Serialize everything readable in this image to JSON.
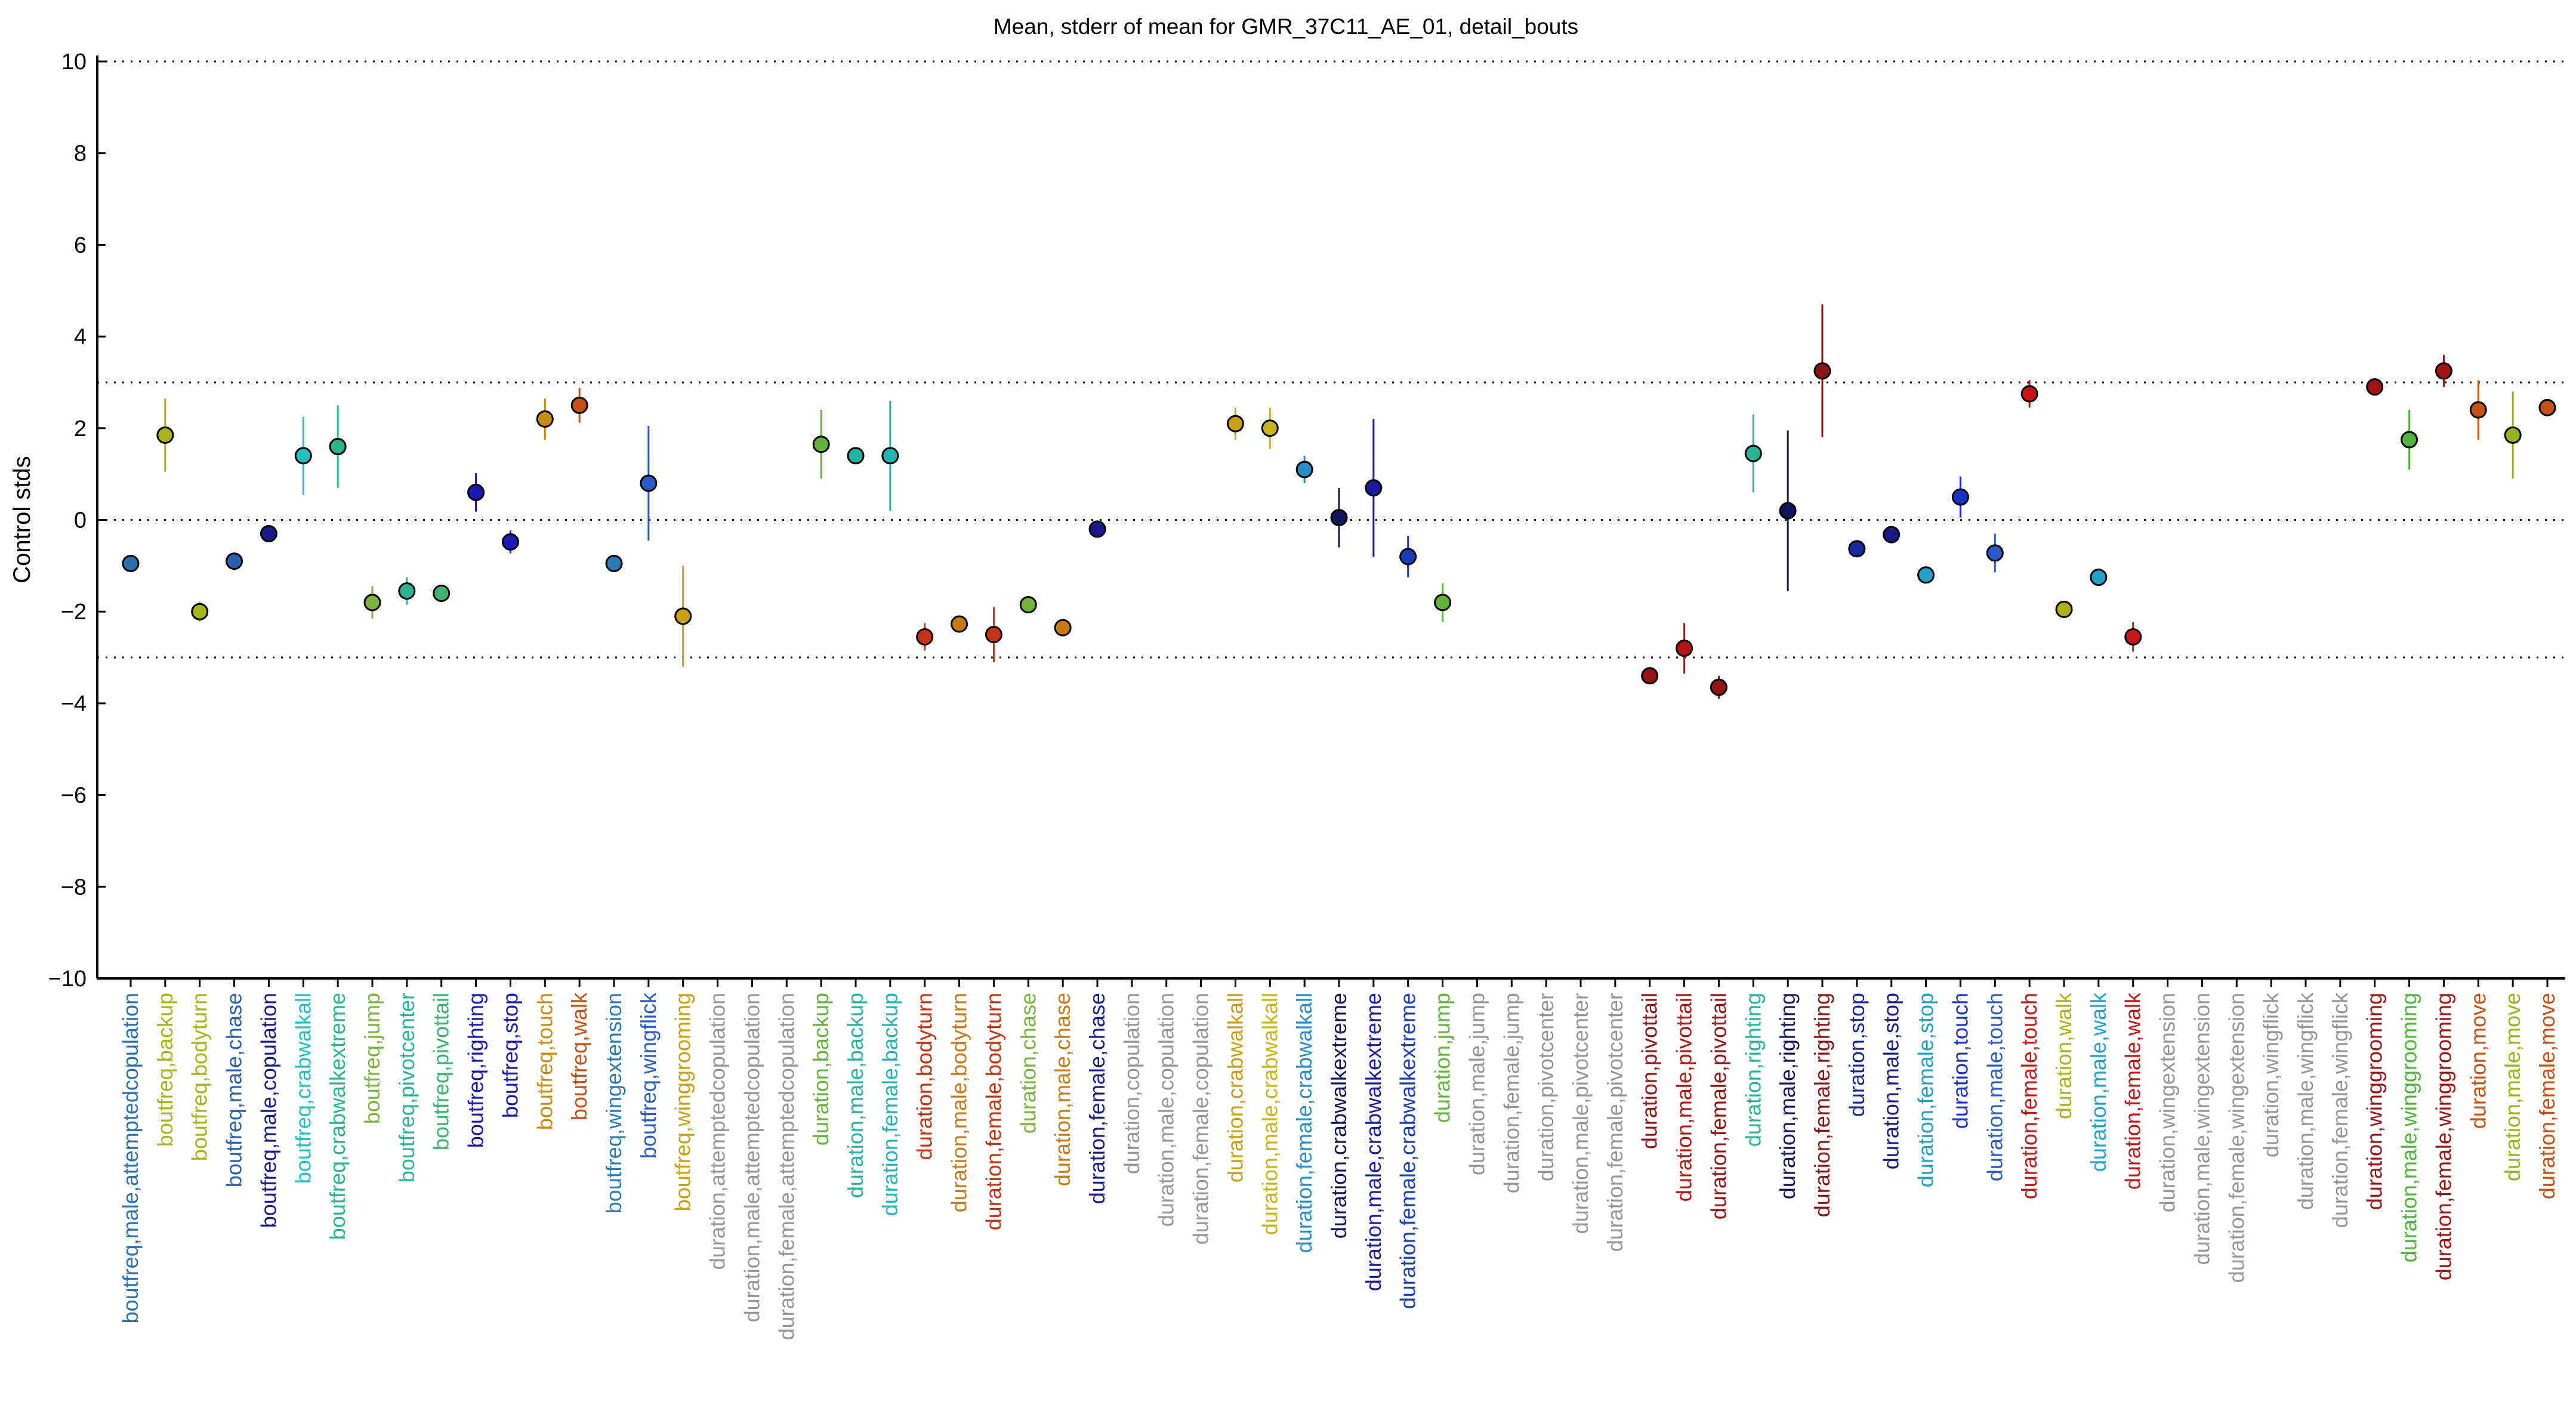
{
  "chart_data": {
    "type": "scatter",
    "title": "Mean, stderr of mean for GMR_37C11_AE_01, detail_bouts",
    "xlabel": "",
    "ylabel": "Control stds",
    "ylim": [
      -10,
      10
    ],
    "yticks": [
      10,
      8,
      6,
      4,
      2,
      0,
      -2,
      -4,
      -6,
      -8,
      -10
    ],
    "ytick_labels": [
      "10",
      "8",
      "6",
      "4",
      "2",
      "0",
      "−2",
      "−4",
      "−6",
      "−8",
      "−10"
    ],
    "reference_lines": [
      10,
      3,
      0,
      -3,
      -10
    ],
    "grid": false,
    "errorbar": "stderr of mean",
    "points": [
      {
        "label": "boutfreq,male,attemptedcopulation",
        "color": "#2a6fb0",
        "mean": -0.95,
        "err": 0.05
      },
      {
        "label": "boutfreq,backup",
        "color": "#a8b41c",
        "mean": 1.85,
        "err": 0.8
      },
      {
        "label": "boutfreq,bodyturn",
        "color": "#a8b41c",
        "mean": -2.0,
        "err": 0.22
      },
      {
        "label": "boutfreq,male,chase",
        "color": "#2a5fb0",
        "mean": -0.9,
        "err": 0.05
      },
      {
        "label": "boutfreq,male,copulation",
        "color": "#1a1a8a",
        "mean": -0.3,
        "err": 0.05
      },
      {
        "label": "boutfreq,crabwalkall",
        "color": "#22c0c0",
        "mean": 1.4,
        "err": 0.85
      },
      {
        "label": "boutfreq,crabwalkextreme",
        "color": "#2ab48c",
        "mean": 1.6,
        "err": 0.9
      },
      {
        "label": "boutfreq,jump",
        "color": "#7cb43c",
        "mean": -1.8,
        "err": 0.35
      },
      {
        "label": "boutfreq,pivotcenter",
        "color": "#2ab496",
        "mean": -1.55,
        "err": 0.3
      },
      {
        "label": "boutfreq,pivottail",
        "color": "#3cb46e",
        "mean": -1.6,
        "err": 0.05
      },
      {
        "label": "boutfreq,righting",
        "color": "#1a1ab4",
        "mean": 0.6,
        "err": 0.42
      },
      {
        "label": "boutfreq,stop",
        "color": "#1a1ab4",
        "mean": -0.48,
        "err": 0.25
      },
      {
        "label": "boutfreq,touch",
        "color": "#c88c14",
        "mean": 2.2,
        "err": 0.45
      },
      {
        "label": "boutfreq,walk",
        "color": "#c85014",
        "mean": 2.5,
        "err": 0.38
      },
      {
        "label": "boutfreq,wingextension",
        "color": "#2a7ab4",
        "mean": -0.95,
        "err": 0.05
      },
      {
        "label": "boutfreq,wingflick",
        "color": "#2a5ac8",
        "mean": 0.8,
        "err": 1.25
      },
      {
        "label": "boutfreq,winggrooming",
        "color": "#c8a014",
        "mean": -2.1,
        "err": 1.1
      },
      {
        "label": "duration,attemptedcopulation",
        "color": "#969696",
        "mean": null,
        "err": null
      },
      {
        "label": "duration,male,attemptedcopulation",
        "color": "#969696",
        "mean": null,
        "err": null
      },
      {
        "label": "duration,female,attemptedcopulation",
        "color": "#969696",
        "mean": null,
        "err": null
      },
      {
        "label": "duration,backup",
        "color": "#64b43c",
        "mean": 1.65,
        "err": 0.75
      },
      {
        "label": "duration,male,backup",
        "color": "#22b4a0",
        "mean": 1.4,
        "err": 0.05
      },
      {
        "label": "duration,female,backup",
        "color": "#22b4b4",
        "mean": 1.4,
        "err": 1.2
      },
      {
        "label": "duration,bodyturn",
        "color": "#c83214",
        "mean": -2.55,
        "err": 0.3
      },
      {
        "label": "duration,male,bodyturn",
        "color": "#c87814",
        "mean": -2.27,
        "err": 0.05
      },
      {
        "label": "duration,female,bodyturn",
        "color": "#c83214",
        "mean": -2.5,
        "err": 0.6
      },
      {
        "label": "duration,chase",
        "color": "#78b43c",
        "mean": -1.85,
        "err": 0.05
      },
      {
        "label": "duration,male,chase",
        "color": "#c87814",
        "mean": -2.35,
        "err": 0.05
      },
      {
        "label": "duration,female,chase",
        "color": "#1a1a8a",
        "mean": -0.2,
        "err": 0.05
      },
      {
        "label": "duration,copulation",
        "color": "#969696",
        "mean": null,
        "err": null
      },
      {
        "label": "duration,male,copulation",
        "color": "#969696",
        "mean": null,
        "err": null
      },
      {
        "label": "duration,female,copulation",
        "color": "#969696",
        "mean": null,
        "err": null
      },
      {
        "label": "duration,crabwalkall",
        "color": "#c8a014",
        "mean": 2.1,
        "err": 0.35
      },
      {
        "label": "duration,male,crabwalkall",
        "color": "#c8b414",
        "mean": 2.0,
        "err": 0.45
      },
      {
        "label": "duration,female,crabwalkall",
        "color": "#2a8cc8",
        "mean": 1.1,
        "err": 0.3
      },
      {
        "label": "duration,crabwalkextreme",
        "color": "#14145a",
        "mean": 0.05,
        "err": 0.65
      },
      {
        "label": "duration,male,crabwalkextreme",
        "color": "#1a1aa0",
        "mean": 0.7,
        "err": 1.5
      },
      {
        "label": "duration,female,crabwalkextreme",
        "color": "#1a3cb4",
        "mean": -0.8,
        "err": 0.45
      },
      {
        "label": "duration,jump",
        "color": "#64b43c",
        "mean": -1.8,
        "err": 0.42
      },
      {
        "label": "duration,male,jump",
        "color": "#969696",
        "mean": null,
        "err": null
      },
      {
        "label": "duration,female,jump",
        "color": "#969696",
        "mean": null,
        "err": null
      },
      {
        "label": "duration,pivotcenter",
        "color": "#969696",
        "mean": null,
        "err": null
      },
      {
        "label": "duration,male,pivotcenter",
        "color": "#969696",
        "mean": null,
        "err": null
      },
      {
        "label": "duration,female,pivotcenter",
        "color": "#969696",
        "mean": null,
        "err": null
      },
      {
        "label": "duration,pivottail",
        "color": "#961414",
        "mean": -3.4,
        "err": 0.05
      },
      {
        "label": "duration,male,pivottail",
        "color": "#b41414",
        "mean": -2.8,
        "err": 0.55
      },
      {
        "label": "duration,female,pivottail",
        "color": "#961414",
        "mean": -3.65,
        "err": 0.25
      },
      {
        "label": "duration,righting",
        "color": "#2ab496",
        "mean": 1.45,
        "err": 0.85
      },
      {
        "label": "duration,male,righting",
        "color": "#14145a",
        "mean": 0.2,
        "err": 1.75
      },
      {
        "label": "duration,female,righting",
        "color": "#8c1414",
        "mean": 3.25,
        "err": 1.45
      },
      {
        "label": "duration,stop",
        "color": "#1a28a0",
        "mean": -0.63,
        "err": 0.05
      },
      {
        "label": "duration,male,stop",
        "color": "#1a1a8a",
        "mean": -0.32,
        "err": 0.05
      },
      {
        "label": "duration,female,stop",
        "color": "#22a0c8",
        "mean": -1.2,
        "err": 0.05
      },
      {
        "label": "duration,touch",
        "color": "#1a32c8",
        "mean": 0.5,
        "err": 0.45
      },
      {
        "label": "duration,male,touch",
        "color": "#2a5ac8",
        "mean": -0.72,
        "err": 0.42
      },
      {
        "label": "duration,female,touch",
        "color": "#c81414",
        "mean": 2.75,
        "err": 0.3
      },
      {
        "label": "duration,walk",
        "color": "#a8b414",
        "mean": -1.95,
        "err": 0.05
      },
      {
        "label": "duration,male,walk",
        "color": "#22a0c8",
        "mean": -1.25,
        "err": 0.05
      },
      {
        "label": "duration,female,walk",
        "color": "#c81414",
        "mean": -2.55,
        "err": 0.32
      },
      {
        "label": "duration,wingextension",
        "color": "#969696",
        "mean": null,
        "err": null
      },
      {
        "label": "duration,male,wingextension",
        "color": "#969696",
        "mean": null,
        "err": null
      },
      {
        "label": "duration,female,wingextension",
        "color": "#969696",
        "mean": null,
        "err": null
      },
      {
        "label": "duration,wingflick",
        "color": "#969696",
        "mean": null,
        "err": null
      },
      {
        "label": "duration,male,wingflick",
        "color": "#969696",
        "mean": null,
        "err": null
      },
      {
        "label": "duration,female,wingflick",
        "color": "#969696",
        "mean": null,
        "err": null
      },
      {
        "label": "duration,winggrooming",
        "color": "#a01414",
        "mean": 2.9,
        "err": 0.05
      },
      {
        "label": "duration,male,winggrooming",
        "color": "#50b43c",
        "mean": 1.75,
        "err": 0.65
      },
      {
        "label": "duration,female,winggrooming",
        "color": "#a01414",
        "mean": 3.25,
        "err": 0.35
      },
      {
        "label": "duration,move",
        "color": "#c85014",
        "mean": 2.4,
        "err": 0.65
      },
      {
        "label": "duration,male,move",
        "color": "#96b41c",
        "mean": 1.85,
        "err": 0.95
      },
      {
        "label": "duration,female,move",
        "color": "#c85014",
        "mean": 2.45,
        "err": 0.05
      }
    ]
  }
}
